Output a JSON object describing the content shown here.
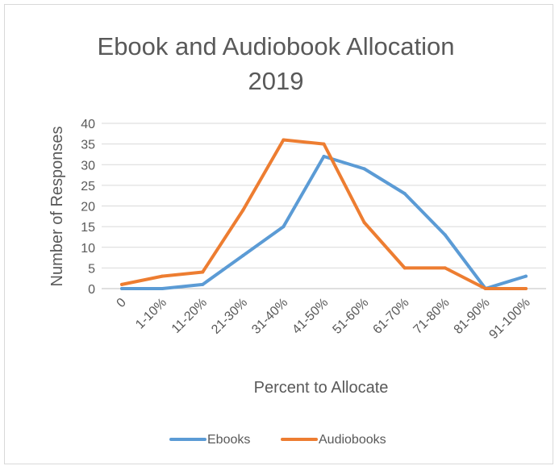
{
  "chart_data": {
    "type": "line",
    "title_line1": "Ebook and Audiobook Allocation",
    "title_line2": "2019",
    "xlabel": "Percent to Allocate",
    "ylabel": "Number of Responses",
    "categories": [
      "0",
      "1-10%",
      "11-20%",
      "21-30%",
      "31-40%",
      "41-50%",
      "51-60%",
      "61-70%",
      "71-80%",
      "81-90%",
      "91-100%"
    ],
    "ylim": [
      0,
      40
    ],
    "yticks": [
      0,
      5,
      10,
      15,
      20,
      25,
      30,
      35,
      40
    ],
    "grid": true,
    "legend_position": "bottom",
    "series": [
      {
        "name": "Ebooks",
        "color": "#5b9bd5",
        "values": [
          0,
          0,
          1,
          8,
          15,
          32,
          29,
          23,
          13,
          0,
          3
        ]
      },
      {
        "name": "Audiobooks",
        "color": "#ed7d31",
        "values": [
          1,
          3,
          4,
          19,
          36,
          35,
          16,
          5,
          5,
          0,
          0
        ]
      }
    ]
  }
}
